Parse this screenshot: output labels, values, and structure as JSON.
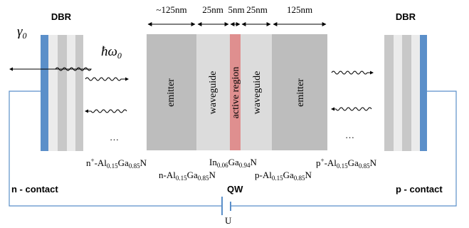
{
  "dbr_left_label": "DBR",
  "dbr_right_label": "DBR",
  "gamma_symbol": "γ",
  "gamma_sub": "0",
  "hbar_omega_symbol": "ħω",
  "hbar_omega_sub": "0",
  "ellipsis_left": "…",
  "ellipsis_right": "…",
  "dimensions": {
    "emitter_left": "~125nm",
    "waveguide_left": "25nm",
    "active": "5nm",
    "waveguide_right": "25nm",
    "emitter_right": "125nm"
  },
  "layers": {
    "emitter_left": "emitter",
    "waveguide_left": "waveguide",
    "active": "active region",
    "waveguide_right": "waveguide",
    "emitter_right": "emitter"
  },
  "materials": {
    "n_plus": {
      "a": "n",
      "sup": "+",
      "b": "-Al",
      "s1": "0.15",
      "c": "Ga",
      "s2": "0.85",
      "d": "N"
    },
    "n": {
      "a": "n-Al",
      "s1": "0.15",
      "c": "Ga",
      "s2": "0.85",
      "d": "N"
    },
    "ingan": {
      "a": "In",
      "s1": "0.06",
      "c": "Ga",
      "s2": "0.94",
      "d": "N"
    },
    "p": {
      "a": "p-Al",
      "s1": "0.15",
      "c": "Ga",
      "s2": "0.85",
      "d": "N"
    },
    "p_plus": {
      "a": "p",
      "sup": "+",
      "b": "-Al",
      "s1": "0.15",
      "c": "Ga",
      "s2": "0.85",
      "d": "N"
    }
  },
  "n_contact": "n - contact",
  "p_contact": "p - contact",
  "qw_label": "QW",
  "u_label": "U",
  "colors": {
    "dbr_blue": "#5b8fc9",
    "active_red": "#df8f8f",
    "emitter_gray": "#bdbdbd",
    "waveguide_gray": "#dcdcdc",
    "wire_blue": "#5b8fc9"
  }
}
